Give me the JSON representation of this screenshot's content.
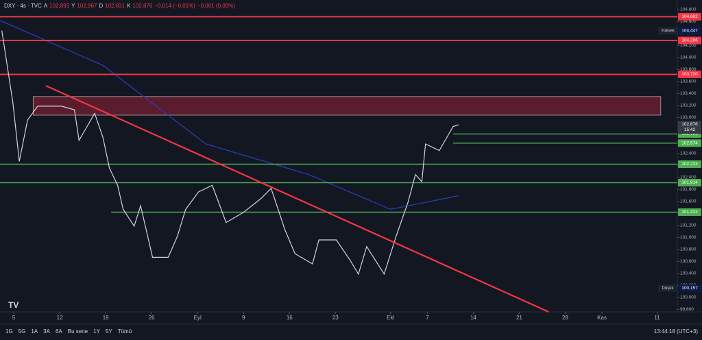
{
  "header": {
    "symbol": "DXY · 4s · TVC",
    "ohlc": [
      {
        "key": "A",
        "label": "102,893"
      },
      {
        "key": "Y",
        "label": "102,967"
      },
      {
        "key": "D",
        "label": "102,831"
      },
      {
        "key": "K",
        "label": "102,876"
      }
    ],
    "change": "−0,014 (−0,01%)",
    "change2": "−0,001 (0,00%)"
  },
  "toolbar": {
    "ranges": [
      "1G",
      "5G",
      "1A",
      "3A",
      "6A",
      "Bu sene",
      "1Y",
      "5Y",
      "Tümü"
    ],
    "clock": "13:44:18 (UTC+3)"
  },
  "chart_data": {
    "type": "line",
    "title": "DXY · 4s · TVC",
    "x": [
      -1.3,
      -0.1,
      0.6,
      1.5,
      2.6,
      5.2,
      6.6,
      7.1,
      8.8,
      9.7,
      10.4,
      11.3,
      11.9,
      13.1,
      13.8,
      15.1,
      16.8,
      17.8,
      18.7,
      20.1,
      21.6,
      23.1,
      25.0,
      26.9,
      28.0,
      29.5,
      30.6,
      32.5,
      33.2,
      35.1,
      36.6,
      37.5,
      38.4,
      40.3,
      41.6,
      42.9,
      43.7,
      44.4,
      44.8,
      46.3,
      47.8,
      48.4
    ],
    "series": [
      {
        "name": "DXY",
        "color": "#d1d4dc",
        "values": [
          104.45,
          103.25,
          102.27,
          102.96,
          103.19,
          103.19,
          103.13,
          102.62,
          103.07,
          102.67,
          102.16,
          101.87,
          101.47,
          101.19,
          101.53,
          100.67,
          100.67,
          101.02,
          101.47,
          101.76,
          101.87,
          101.25,
          101.42,
          101.65,
          101.82,
          101.13,
          100.73,
          100.56,
          100.96,
          100.96,
          100.62,
          100.39,
          100.85,
          100.39,
          101.02,
          101.59,
          102.05,
          101.93,
          102.56,
          102.45,
          102.85,
          102.88
        ]
      }
    ],
    "ma": {
      "color": "#2a3bb5",
      "x": [
        -1.5,
        9.7,
        20.9,
        32.1,
        41,
        48.5
      ],
      "values": [
        104.62,
        103.87,
        102.56,
        102.05,
        101.47,
        101.7
      ]
    },
    "trendline": {
      "color": "#f23645",
      "x": [
        3.5,
        58.2
      ],
      "y": [
        103.53,
        99.76
      ]
    },
    "zone": {
      "color": "#7a1f33",
      "x": [
        2.1,
        70.4
      ],
      "y": [
        103.35,
        103.04
      ]
    },
    "levels": [
      {
        "value": 104.682,
        "label": "104,682",
        "color": "#f23645",
        "x_start": -1.5
      },
      {
        "value": 104.286,
        "label": "104,286",
        "color": "#f23645",
        "x_start": -1.5
      },
      {
        "value": 103.72,
        "label": "103,720",
        "color": "#f23645",
        "x_start": -1.5
      },
      {
        "value": 102.726,
        "label": "102,726",
        "color": "#4caf50",
        "x_start": 47.8
      },
      {
        "value": 102.574,
        "label": "102,574",
        "color": "#4caf50",
        "x_start": 47.8
      },
      {
        "value": 102.223,
        "label": "102,223",
        "color": "#4caf50",
        "x_start": -1.5
      },
      {
        "value": 101.914,
        "label": "101,914",
        "color": "#4caf50",
        "x_start": -1.5
      },
      {
        "value": 101.423,
        "label": "101,423",
        "color": "#4caf50",
        "x_start": 10.6
      }
    ],
    "markers": [
      {
        "name": "Yüksek",
        "value": 104.447,
        "label": "104,447"
      },
      {
        "name": "Düşük",
        "value": 100.157,
        "label": "100,157"
      }
    ],
    "last": {
      "value": 102.876,
      "label": "102,876",
      "countdown": "15:42"
    },
    "xlim": [
      -1.5,
      72.2
    ],
    "ylim": [
      99.76,
      104.96
    ],
    "xticks": [
      {
        "value": 0,
        "label": "5"
      },
      {
        "value": 5,
        "label": "12"
      },
      {
        "value": 10,
        "label": "19"
      },
      {
        "value": 15,
        "label": "26"
      },
      {
        "value": 20,
        "label": "Eyl"
      },
      {
        "value": 25,
        "label": "9"
      },
      {
        "value": 30,
        "label": "16"
      },
      {
        "value": 35,
        "label": "23"
      },
      {
        "value": 41,
        "label": "Ekl"
      },
      {
        "value": 45,
        "label": "7"
      },
      {
        "value": 50,
        "label": "14"
      },
      {
        "value": 55,
        "label": "21"
      },
      {
        "value": 60,
        "label": "28"
      },
      {
        "value": 64,
        "label": "Kas"
      },
      {
        "value": 70,
        "label": "11"
      }
    ],
    "yticks": [
      {
        "value": 104.8,
        "label": "104,800"
      },
      {
        "value": 104.6,
        "label": "104,600"
      },
      {
        "value": 104.4,
        "label": "104,400"
      },
      {
        "value": 104.2,
        "label": "104,200"
      },
      {
        "value": 104,
        "label": "104,000"
      },
      {
        "value": 103.8,
        "label": "103,800"
      },
      {
        "value": 103.6,
        "label": "103,600"
      },
      {
        "value": 103.4,
        "label": "103,400"
      },
      {
        "value": 103.2,
        "label": "103,200"
      },
      {
        "value": 103,
        "label": "103,000"
      },
      {
        "value": 102.8,
        "label": "102,800"
      },
      {
        "value": 102.6,
        "label": "102,600"
      },
      {
        "value": 102.4,
        "label": "102,400"
      },
      {
        "value": 102.2,
        "label": "102,200"
      },
      {
        "value": 102,
        "label": "102,000"
      },
      {
        "value": 101.8,
        "label": "101,800"
      },
      {
        "value": 101.6,
        "label": "101,600"
      },
      {
        "value": 101.4,
        "label": "101,400"
      },
      {
        "value": 101.2,
        "label": "101,200"
      },
      {
        "value": 101,
        "label": "101,000"
      },
      {
        "value": 100.8,
        "label": "100,800"
      },
      {
        "value": 100.6,
        "label": "100,600"
      },
      {
        "value": 100.4,
        "label": "100,400"
      },
      {
        "value": 100.2,
        "label": "100,200"
      },
      {
        "value": 100,
        "label": "100,000"
      },
      {
        "value": 99.8,
        "label": "99,800"
      }
    ]
  }
}
